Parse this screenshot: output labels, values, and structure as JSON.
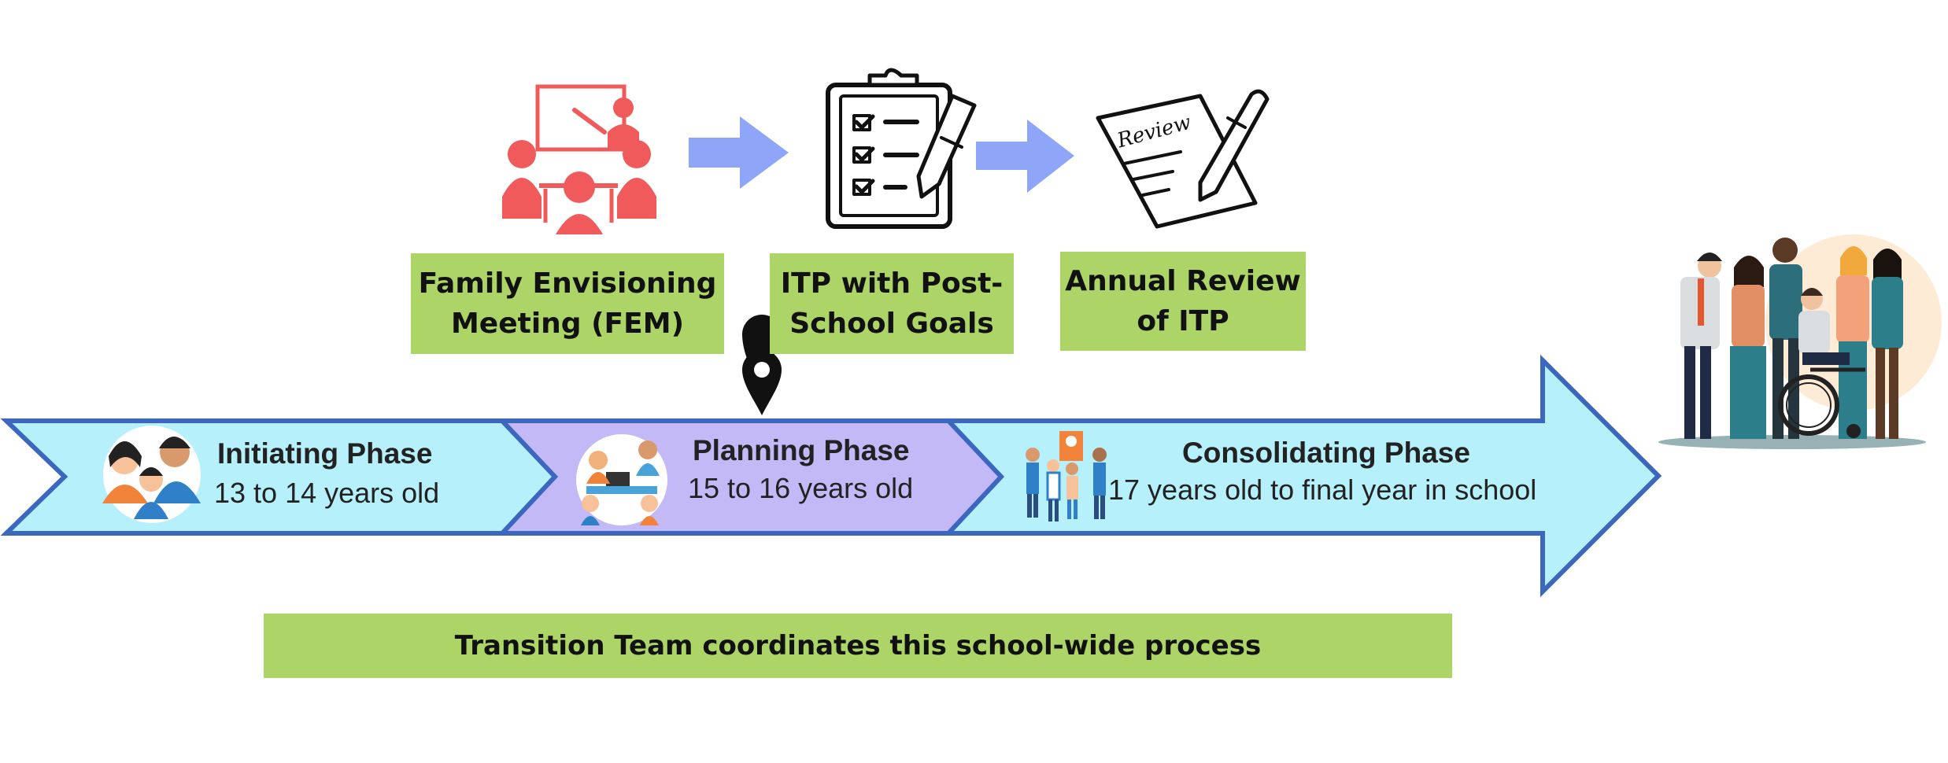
{
  "steps": [
    {
      "line1": "Family Envisioning",
      "line2": "Meeting (FEM)",
      "icon": "meeting-presentation-icon"
    },
    {
      "line1": "ITP with Post-",
      "line2": "School Goals",
      "icon": "checklist-clipboard-icon"
    },
    {
      "line1": "Annual Review",
      "line2": "of ITP",
      "icon": "review-document-pen-icon"
    }
  ],
  "review_icon_text": "Review",
  "phases": [
    {
      "title": "Initiating Phase",
      "subtitle": "13 to 14 years old",
      "color": "#b6f0fa",
      "icon": "family-group-icon"
    },
    {
      "title": "Planning Phase",
      "subtitle": "15 to 16 years old",
      "color": "#c4b9f7",
      "icon": "planning-table-icon"
    },
    {
      "title": "Consolidating Phase",
      "subtitle": "17 years old to final year in school",
      "color": "#b6f0fa",
      "icon": "students-presentation-icon"
    }
  ],
  "current_marker": "location-pin-icon",
  "banner": "Transition Team coordinates this school-wide process",
  "colors": {
    "arrow_outline": "#3c67be",
    "box_green": "#acd467",
    "flow_arrow": "#8fa5f7",
    "meeting_icon": "#f05a5a"
  }
}
